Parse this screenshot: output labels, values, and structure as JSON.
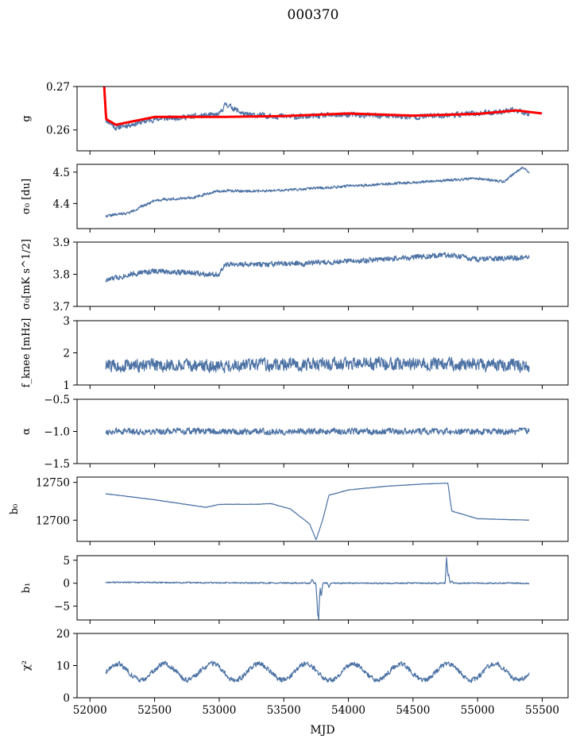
{
  "chart_data": {
    "type": "line",
    "title": "000370",
    "xlabel": "MJD",
    "xlim": [
      51900,
      55700
    ],
    "x_ticks": [
      "52000",
      "52500",
      "53000",
      "53500",
      "54000",
      "54500",
      "55000",
      "55500"
    ],
    "x_tick_values": [
      52000,
      52500,
      53000,
      53500,
      54000,
      54500,
      55000,
      55500
    ],
    "x_start": 52120,
    "x_end": 55400,
    "colors": {
      "line": "#4c72a4",
      "fit": "#ff0000"
    },
    "panels": [
      {
        "name": "g",
        "ylabel": "g",
        "ylim": [
          0.2552,
          0.27
        ],
        "yticks": [
          0.26,
          0.27
        ],
        "ytick_labels": [
          "0.26",
          "0.27"
        ],
        "series": [
          {
            "name": "g",
            "kind": "noise",
            "baseline": [
              [
                52120,
                0.2625
              ],
              [
                52200,
                0.2605
              ],
              [
                52500,
                0.2625
              ],
              [
                53000,
                0.2635
              ],
              [
                53050,
                0.266
              ],
              [
                53200,
                0.2635
              ],
              [
                53600,
                0.263
              ],
              [
                54000,
                0.2635
              ],
              [
                54500,
                0.263
              ],
              [
                55000,
                0.2638
              ],
              [
                55300,
                0.2645
              ],
              [
                55400,
                0.2638
              ]
            ],
            "noise": 0.0009,
            "seed": 11
          },
          {
            "name": "fit",
            "kind": "fit",
            "baseline": [
              [
                52110,
                0.27
              ],
              [
                52125,
                0.2625
              ],
              [
                52200,
                0.2612
              ],
              [
                52500,
                0.263
              ],
              [
                53000,
                0.263
              ],
              [
                53500,
                0.2632
              ],
              [
                54000,
                0.2638
              ],
              [
                54500,
                0.2633
              ],
              [
                55000,
                0.2637
              ],
              [
                55300,
                0.2645
              ],
              [
                55500,
                0.2638
              ]
            ]
          }
        ]
      },
      {
        "name": "sigma0-du",
        "ylabel": "σ₀ [du]",
        "ylim": [
          4.32,
          4.525
        ],
        "yticks": [
          4.4,
          4.5
        ],
        "ytick_labels": [
          "4.4",
          "4.5"
        ],
        "series": [
          {
            "name": "sigma0",
            "kind": "noise",
            "baseline": [
              [
                52120,
                4.36
              ],
              [
                52300,
                4.37
              ],
              [
                52500,
                4.41
              ],
              [
                52800,
                4.42
              ],
              [
                53000,
                4.44
              ],
              [
                53400,
                4.44
              ],
              [
                53800,
                4.45
              ],
              [
                54200,
                4.46
              ],
              [
                54600,
                4.47
              ],
              [
                55000,
                4.48
              ],
              [
                55200,
                4.47
              ],
              [
                55350,
                4.515
              ],
              [
                55400,
                4.5
              ]
            ],
            "noise": 0.006,
            "seed": 22
          }
        ]
      },
      {
        "name": "sigma0-mks",
        "ylabel": "σ₀[mK s^1/2]",
        "ylim": [
          3.7,
          3.9
        ],
        "yticks": [
          3.7,
          3.8,
          3.9
        ],
        "ytick_labels": [
          "3.7",
          "3.8",
          "3.9"
        ],
        "series": [
          {
            "name": "sigma0K",
            "kind": "noise",
            "baseline": [
              [
                52120,
                3.78
              ],
              [
                52300,
                3.8
              ],
              [
                52500,
                3.81
              ],
              [
                53000,
                3.8
              ],
              [
                53050,
                3.83
              ],
              [
                53400,
                3.83
              ],
              [
                54000,
                3.84
              ],
              [
                54800,
                3.86
              ],
              [
                55000,
                3.845
              ],
              [
                55400,
                3.855
              ]
            ],
            "noise": 0.012,
            "seed": 33
          }
        ]
      },
      {
        "name": "fknee",
        "ylabel": "f_knee [mHz]",
        "ylim": [
          1,
          3
        ],
        "yticks": [
          1,
          2,
          3
        ],
        "ytick_labels": [
          "1",
          "2",
          "3"
        ],
        "series": [
          {
            "name": "fknee",
            "kind": "noise",
            "baseline": [
              [
                52120,
                1.6
              ],
              [
                53000,
                1.6
              ],
              [
                53800,
                1.65
              ],
              [
                54800,
                1.65
              ],
              [
                55400,
                1.6
              ]
            ],
            "noise": 0.28,
            "seed": 44
          }
        ]
      },
      {
        "name": "alpha",
        "ylabel": "α",
        "ylim": [
          -1.5,
          -0.5
        ],
        "yticks": [
          -1.5,
          -1.0,
          -0.5
        ],
        "ytick_labels": [
          "−1.5",
          "−1.0",
          "−0.5"
        ],
        "series": [
          {
            "name": "alpha",
            "kind": "noise",
            "baseline": [
              [
                52120,
                -1.0
              ],
              [
                55400,
                -1.0
              ]
            ],
            "noise": 0.07,
            "seed": 55
          }
        ]
      },
      {
        "name": "b0",
        "ylabel": "b₀",
        "ylim": [
          12672,
          12757
        ],
        "yticks": [
          12700,
          12750
        ],
        "ytick_labels": [
          "12700",
          "12750"
        ],
        "series": [
          {
            "name": "b0",
            "kind": "smooth",
            "baseline": [
              [
                52120,
                12735
              ],
              [
                52500,
                12727
              ],
              [
                52900,
                12717
              ],
              [
                53000,
                12721
              ],
              [
                53300,
                12721
              ],
              [
                53400,
                12722
              ],
              [
                53550,
                12715
              ],
              [
                53700,
                12695
              ],
              [
                53750,
                12674
              ],
              [
                53800,
                12700
              ],
              [
                53850,
                12733
              ],
              [
                54000,
                12740
              ],
              [
                54300,
                12745
              ],
              [
                54600,
                12748
              ],
              [
                54770,
                12749
              ],
              [
                54800,
                12712
              ],
              [
                55000,
                12702
              ],
              [
                55400,
                12700
              ]
            ],
            "noise": 0.3,
            "seed": 66
          }
        ]
      },
      {
        "name": "b1",
        "ylabel": "b₁",
        "ylim": [
          -8,
          6
        ],
        "yticks": [
          -5,
          0,
          5
        ],
        "ytick_labels": [
          "−5",
          "0",
          "5"
        ],
        "series": [
          {
            "name": "b1",
            "kind": "noise",
            "baseline": [
              [
                52120,
                0.2
              ],
              [
                53700,
                0
              ],
              [
                55400,
                0
              ]
            ],
            "noise": 0.2,
            "seed": 77,
            "events": [
              [
                53720,
                0.8
              ],
              [
                53760,
                -5.0
              ],
              [
                53770,
                -7.0
              ],
              [
                53790,
                -3.0
              ],
              [
                53850,
                -1.0
              ],
              [
                54760,
                5.5
              ],
              [
                54775,
                2.0
              ],
              [
                54800,
                0.5
              ]
            ]
          }
        ]
      },
      {
        "name": "chi2",
        "ylabel": "χ²",
        "ylim": [
          0,
          20
        ],
        "yticks": [
          0,
          10,
          20
        ],
        "ytick_labels": [
          "0",
          "10",
          "20"
        ],
        "series": [
          {
            "name": "chi2",
            "kind": "seasonal",
            "mean": 8,
            "amplitude": 2.5,
            "period": 365.25,
            "noise": 1.1,
            "seed": 88
          }
        ]
      }
    ]
  }
}
